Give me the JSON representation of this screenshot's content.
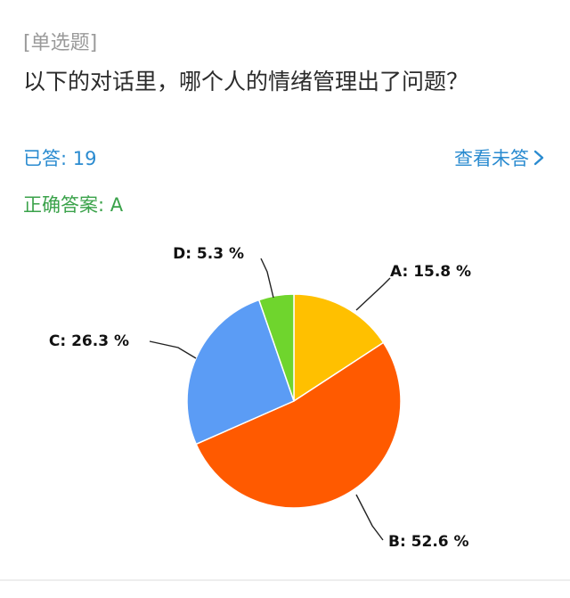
{
  "question": {
    "type_label": "[单选题]",
    "title": "以下的对话里，哪个人的情绪管理出了问题？"
  },
  "stats": {
    "answered_label": "已答: 19",
    "view_unanswered_label": "查看未答",
    "correct_answer_label": "正确答案: A"
  },
  "colors": {
    "accent_blue": "#2a8bd0",
    "correct_green": "#3aa24a"
  },
  "icons": {
    "view_unanswered": "chevron-right-icon"
  },
  "chart_data": {
    "type": "pie",
    "categories": [
      "A",
      "B",
      "C",
      "D"
    ],
    "values": [
      15.8,
      52.6,
      26.3,
      5.3
    ],
    "labels": [
      "A: 15.8 %",
      "B: 52.6 %",
      "C: 26.3 %",
      "D: 5.3 %"
    ],
    "colors": [
      "#ffc000",
      "#ff5a00",
      "#5b9cf5",
      "#6fd52d"
    ]
  }
}
